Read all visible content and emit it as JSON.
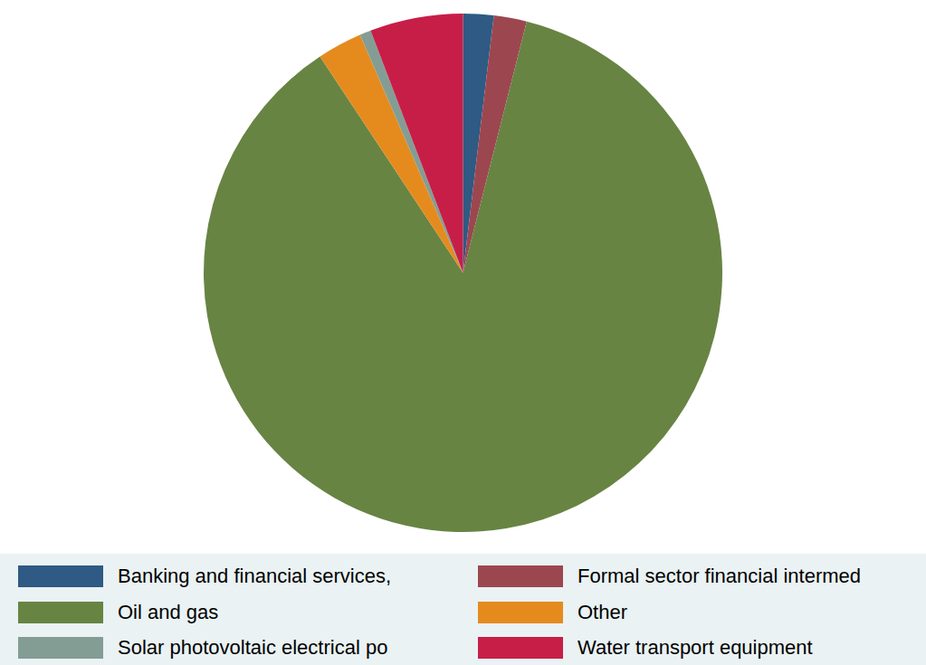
{
  "chart_data": {
    "type": "pie",
    "categories": [
      "Banking and financial services,",
      "Formal sector financial intermed",
      "Oil and gas",
      "Other",
      "Solar photovoltaic electrical po",
      "Water transport equipment"
    ],
    "values": [
      1.9,
      2.05,
      86.75,
      2.8,
      0.7,
      5.8
    ],
    "colors": [
      "#2e5a84",
      "#9c4750",
      "#678443",
      "#e58b1e",
      "#849d94",
      "#c71e48"
    ],
    "legend": "bottom"
  }
}
